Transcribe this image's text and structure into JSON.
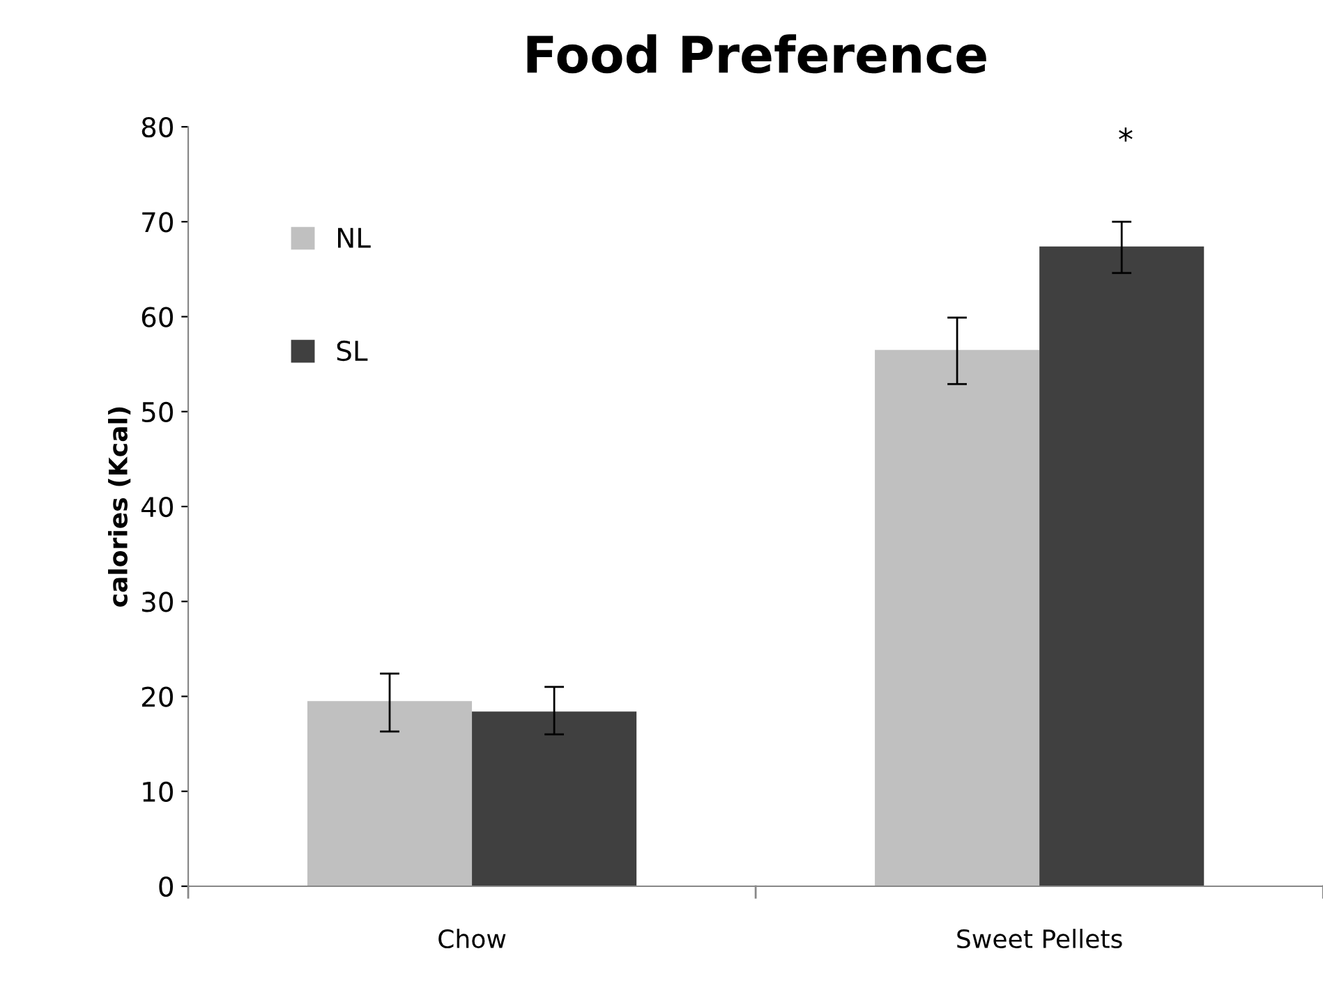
{
  "chart_data": {
    "type": "bar",
    "title": "Food Preference",
    "ylabel": "calories (Kcal)",
    "categories": [
      "Chow",
      "Sweet Pellets"
    ],
    "series": [
      {
        "name": "NL",
        "color": "#c0c0c0",
        "values": [
          19.5,
          56.5
        ],
        "errors": [
          [
            16.3,
            22.4
          ],
          [
            52.9,
            59.9
          ]
        ]
      },
      {
        "name": "SL",
        "color": "#404040",
        "values": [
          18.4,
          67.4
        ],
        "errors": [
          [
            16.0,
            21.0
          ],
          [
            64.6,
            70.0
          ]
        ]
      }
    ],
    "ylim": [
      0,
      80
    ],
    "yticks": [
      0,
      10,
      20,
      30,
      40,
      50,
      60,
      70,
      80
    ],
    "grid": false,
    "legend": "top left",
    "annotations": [
      "*"
    ]
  }
}
